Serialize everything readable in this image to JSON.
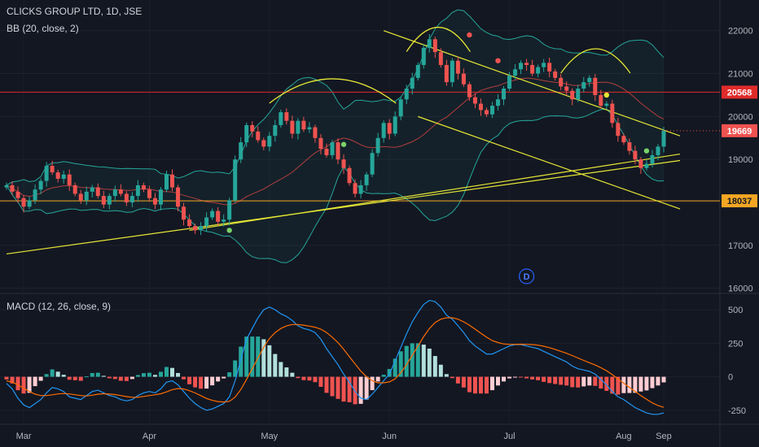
{
  "header": {
    "symbol_line": "CLICKS GROUP LTD, 1D, JSE",
    "bb_label": "BB (20, close, 2)",
    "macd_label": "MACD (12, 26, close, 9)"
  },
  "colors": {
    "background": "#131722",
    "up_candle": "#26a69a",
    "down_candle": "#ef5350",
    "bb_band": "#26a69a",
    "bb_basis": "#b33e3e",
    "macd_line": "#2196f3",
    "signal_line": "#ff6d00",
    "trendline": "#e6e635",
    "resistance": "#e02b2b",
    "support": "#f5a623"
  },
  "chart_data": [
    {
      "type": "candlestick",
      "title": "CLICKS GROUP LTD, 1D, JSE",
      "x_ticks": [
        "Mar",
        "Apr",
        "May",
        "Jun",
        "Jul",
        "Aug",
        "Sep"
      ],
      "y_ticks": [
        16000,
        17000,
        18000,
        19000,
        20000,
        21000,
        22000
      ],
      "ylim": [
        15900,
        22600
      ],
      "close_series": [
        18400,
        18250,
        18100,
        17900,
        18050,
        18300,
        18500,
        18850,
        18700,
        18550,
        18650,
        18400,
        18200,
        18050,
        18250,
        18350,
        18150,
        17950,
        18150,
        18300,
        18200,
        18000,
        18150,
        18400,
        18300,
        18100,
        17950,
        18300,
        18650,
        18350,
        17900,
        17600,
        17450,
        17350,
        17450,
        17650,
        17800,
        17550,
        17600,
        18050,
        19000,
        19400,
        19800,
        19650,
        19450,
        19300,
        19550,
        19800,
        20100,
        19900,
        19600,
        19900,
        19700,
        19750,
        19500,
        19250,
        19100,
        19400,
        19000,
        18800,
        18450,
        18200,
        18400,
        18650,
        19150,
        19500,
        19850,
        19600,
        20000,
        20400,
        20650,
        20900,
        21200,
        21600,
        21800,
        21500,
        21200,
        20800,
        21300,
        21000,
        20750,
        20450,
        20300,
        20150,
        20050,
        20250,
        20400,
        20650,
        20950,
        21100,
        21250,
        21200,
        21000,
        21150,
        21250,
        21050,
        20900,
        20700,
        20600,
        20400,
        20650,
        20800,
        20900,
        20500,
        20250,
        20300,
        19850,
        19550,
        19400,
        19200,
        19000,
        18800,
        18900,
        19100,
        19300,
        19669
      ],
      "last_price": 19669,
      "bollinger_bands": {
        "length": 20,
        "source": "close",
        "stddev": 2
      },
      "horizontal_levels": [
        {
          "value": 20568,
          "label": "20568",
          "role": "resistance"
        },
        {
          "value": 18037,
          "label": "18037",
          "role": "support"
        }
      ],
      "price_badges": [
        "20568",
        "19669",
        "18037"
      ],
      "event_marker": "D"
    },
    {
      "type": "line",
      "title": "MACD (12, 26, close, 9)",
      "y_ticks": [
        -250,
        0,
        250,
        500
      ],
      "ylim": [
        -330,
        610
      ],
      "series": [
        {
          "name": "MACD",
          "values": [
            -50,
            -90,
            -160,
            -210,
            -230,
            -200,
            -170,
            -120,
            -80,
            -90,
            -110,
            -150,
            -160,
            -170,
            -140,
            -110,
            -100,
            -120,
            -140,
            -150,
            -170,
            -180,
            -170,
            -140,
            -120,
            -110,
            -120,
            -90,
            -40,
            -30,
            -60,
            -110,
            -160,
            -200,
            -230,
            -250,
            -240,
            -220,
            -200,
            -150,
            -30,
            130,
            280,
            360,
            440,
            500,
            520,
            500,
            470,
            450,
            420,
            380,
            360,
            350,
            330,
            280,
            210,
            150,
            90,
            20,
            -40,
            -110,
            -160,
            -170,
            -130,
            -80,
            -30,
            20,
            120,
            220,
            320,
            410,
            480,
            540,
            570,
            560,
            520,
            460,
            430,
            380,
            330,
            270,
            230,
            200,
            170,
            170,
            190,
            210,
            230,
            240,
            240,
            230,
            220,
            210,
            190,
            170,
            150,
            130,
            110,
            80,
            60,
            50,
            40,
            20,
            -20,
            -60,
            -110,
            -150,
            -170,
            -200,
            -230,
            -250,
            -270,
            -280,
            -280,
            -270
          ]
        },
        {
          "name": "Signal",
          "values": [
            -30,
            -40,
            -60,
            -85,
            -110,
            -130,
            -140,
            -140,
            -135,
            -128,
            -125,
            -128,
            -134,
            -140,
            -143,
            -138,
            -130,
            -127,
            -129,
            -133,
            -140,
            -148,
            -153,
            -153,
            -147,
            -140,
            -134,
            -127,
            -113,
            -96,
            -88,
            -91,
            -104,
            -121,
            -141,
            -162,
            -176,
            -185,
            -188,
            -183,
            -152,
            -95,
            -20,
            60,
            140,
            220,
            285,
            330,
            360,
            380,
            390,
            390,
            385,
            378,
            370,
            355,
            330,
            295,
            255,
            205,
            150,
            95,
            42,
            0,
            -30,
            -45,
            -45,
            -38,
            -15,
            30,
            90,
            160,
            230,
            300,
            360,
            405,
            430,
            440,
            440,
            430,
            410,
            385,
            355,
            325,
            295,
            270,
            255,
            245,
            242,
            242,
            243,
            242,
            240,
            236,
            228,
            217,
            204,
            190,
            175,
            158,
            140,
            122,
            105,
            88,
            68,
            45,
            16,
            -17,
            -48,
            -79,
            -110,
            -140,
            -168,
            -195,
            -215,
            -228
          ]
        }
      ],
      "histogram": "MACD minus Signal"
    }
  ]
}
